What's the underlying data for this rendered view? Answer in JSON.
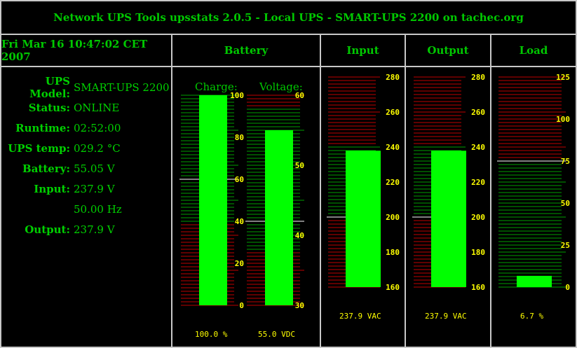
{
  "title": "Network UPS Tools upsstats 2.0.5 - Local UPS - SMART-UPS 2200 on tachec.org",
  "datetime": "Fri Mar 16 10:47:02 CET 2007",
  "headers": {
    "battery": "Battery",
    "input": "Input",
    "output": "Output",
    "load": "Load"
  },
  "stats": [
    {
      "key": "UPS Model:",
      "value": "SMART-UPS 2200"
    },
    {
      "key": "Status:",
      "value": "ONLINE"
    },
    {
      "key": "Runtime:",
      "value": "02:52:00"
    },
    {
      "key": "UPS temp:",
      "value": "029.2 °C"
    },
    {
      "key": "Battery:",
      "value": "55.05 V"
    },
    {
      "key": "Input:",
      "value": "237.9 V"
    },
    {
      "key": "",
      "value": "50.00 Hz"
    },
    {
      "key": "Output:",
      "value": "237.9 V"
    }
  ],
  "gauges": {
    "charge": {
      "label": "Charge:",
      "min": 0,
      "max": 100,
      "ticks": [
        0,
        20,
        40,
        60,
        80,
        100
      ],
      "value": 100,
      "readout": "100.0 %"
    },
    "voltage": {
      "label": "Voltage:",
      "min": 30,
      "max": 60,
      "ticks": [
        30,
        40,
        50,
        60
      ],
      "value": 55.0,
      "readout": "55.0 VDC"
    },
    "input": {
      "min": 160,
      "max": 280,
      "ticks": [
        160,
        180,
        200,
        220,
        240,
        260,
        280
      ],
      "value": 237.9,
      "readout": "237.9 VAC"
    },
    "output": {
      "min": 160,
      "max": 280,
      "ticks": [
        160,
        180,
        200,
        220,
        240,
        260,
        280
      ],
      "value": 237.9,
      "readout": "237.9 VAC"
    },
    "load": {
      "min": 0,
      "max": 125,
      "ticks": [
        0,
        25,
        50,
        75,
        100,
        125
      ],
      "value": 6.7,
      "readout": "6.7 %"
    }
  },
  "colors": {
    "bar": "#00ff00",
    "text": "#00c800",
    "tick_label": "#ffff00",
    "warn_line": "#c00000",
    "ok_line": "#00a000",
    "mark_line": "#ffffff",
    "border": "#c8c8c8"
  }
}
